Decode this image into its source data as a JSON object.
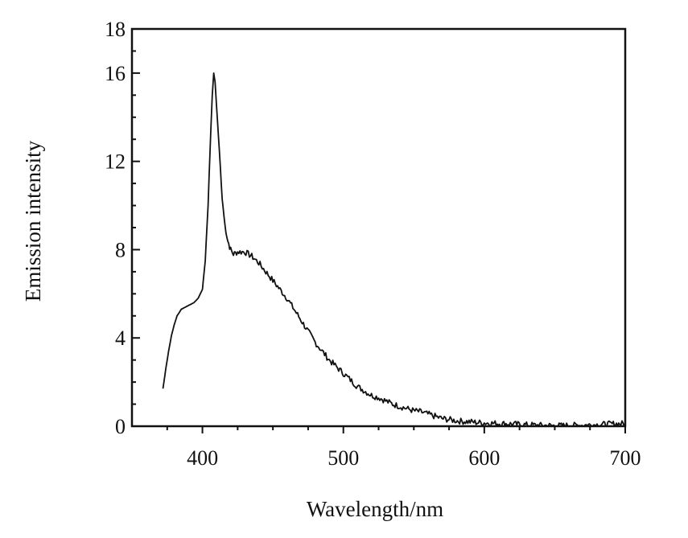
{
  "chart_data": {
    "type": "line",
    "xlabel": "Wavelength/nm",
    "ylabel": "Emission intensity",
    "xlim": [
      350,
      700
    ],
    "ylim": [
      0,
      18
    ],
    "x_ticks": [
      400,
      500,
      600,
      700
    ],
    "y_ticks": [
      0,
      4,
      8,
      12,
      16,
      18
    ],
    "grid": false,
    "series": [
      {
        "color": "#111111",
        "points": [
          [
            372,
            1.7
          ],
          [
            374,
            2.6
          ],
          [
            376,
            3.4
          ],
          [
            378,
            4.1
          ],
          [
            380,
            4.6
          ],
          [
            382,
            5.0
          ],
          [
            385,
            5.3
          ],
          [
            388,
            5.4
          ],
          [
            391,
            5.5
          ],
          [
            394,
            5.6
          ],
          [
            397,
            5.8
          ],
          [
            400,
            6.2
          ],
          [
            402,
            7.5
          ],
          [
            404,
            10.0
          ],
          [
            406,
            13.5
          ],
          [
            407,
            15.0
          ],
          [
            408,
            16.0
          ],
          [
            409,
            15.6
          ],
          [
            410,
            14.5
          ],
          [
            412,
            12.5
          ],
          [
            414,
            10.3
          ],
          [
            416,
            9.1
          ],
          [
            418,
            8.4
          ],
          [
            420,
            8.0
          ],
          [
            422,
            7.8
          ],
          [
            425,
            7.9
          ],
          [
            430,
            7.9
          ],
          [
            435,
            7.7
          ],
          [
            440,
            7.4
          ],
          [
            445,
            7.0
          ],
          [
            450,
            6.6
          ],
          [
            455,
            6.2
          ],
          [
            460,
            5.8
          ],
          [
            465,
            5.3
          ],
          [
            470,
            4.8
          ],
          [
            475,
            4.3
          ],
          [
            480,
            3.8
          ],
          [
            485,
            3.4
          ],
          [
            490,
            3.0
          ],
          [
            495,
            2.7
          ],
          [
            500,
            2.4
          ],
          [
            505,
            2.1
          ],
          [
            510,
            1.8
          ],
          [
            515,
            1.6
          ],
          [
            520,
            1.4
          ],
          [
            525,
            1.3
          ],
          [
            530,
            1.15
          ],
          [
            535,
            1.0
          ],
          [
            540,
            0.9
          ],
          [
            545,
            0.8
          ],
          [
            550,
            0.7
          ],
          [
            555,
            0.65
          ],
          [
            560,
            0.55
          ],
          [
            565,
            0.45
          ],
          [
            570,
            0.35
          ],
          [
            575,
            0.3
          ],
          [
            580,
            0.25
          ],
          [
            585,
            0.22
          ],
          [
            590,
            0.2
          ],
          [
            595,
            0.17
          ],
          [
            600,
            0.15
          ],
          [
            610,
            0.12
          ],
          [
            620,
            0.1
          ],
          [
            630,
            0.06
          ],
          [
            640,
            0.04
          ],
          [
            650,
            0.02
          ],
          [
            660,
            0.03
          ],
          [
            670,
            0.05
          ],
          [
            680,
            0.07
          ],
          [
            690,
            0.1
          ],
          [
            700,
            0.12
          ]
        ]
      }
    ]
  }
}
